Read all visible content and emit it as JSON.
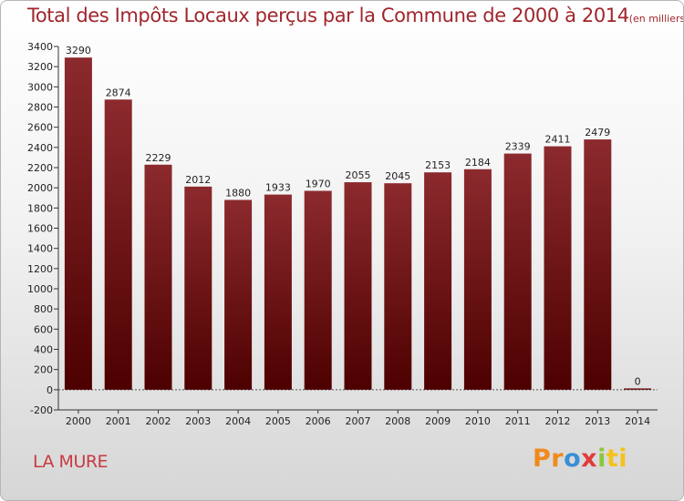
{
  "header": {
    "title": "Total des Impôts Locaux perçus par la Commune de 2000 à 2014",
    "unit": "(en milliers d'€)"
  },
  "footer": {
    "commune": "LA MURE",
    "logo": {
      "p1": "Pr",
      "p2": "o",
      "p3": "x",
      "p4": "i",
      "p5": "ti"
    }
  },
  "chart_data": {
    "type": "bar",
    "title": "Total des Impôts Locaux perçus par la Commune de 2000 à 2014",
    "xlabel": "",
    "ylabel": "",
    "categories": [
      "2000",
      "2001",
      "2002",
      "2003",
      "2004",
      "2005",
      "2006",
      "2007",
      "2008",
      "2009",
      "2010",
      "2011",
      "2012",
      "2013",
      "2014"
    ],
    "values": [
      3290,
      2874,
      2229,
      2012,
      1880,
      1933,
      1970,
      2055,
      2045,
      2153,
      2184,
      2339,
      2411,
      2479,
      0
    ],
    "ylim": [
      -200,
      3400
    ],
    "yticks": [
      -200,
      0,
      200,
      400,
      600,
      800,
      1000,
      1200,
      1400,
      1600,
      1800,
      2000,
      2200,
      2400,
      2600,
      2800,
      3000,
      3200,
      3400
    ],
    "grid": false,
    "bar_color": "#7a1a1d"
  }
}
